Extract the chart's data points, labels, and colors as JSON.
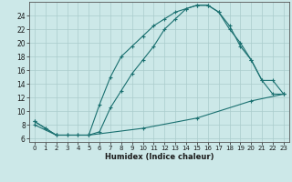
{
  "title": "",
  "xlabel": "Humidex (Indice chaleur)",
  "background_color": "#cce8e8",
  "grid_color": "#aacccc",
  "line_color": "#1a7070",
  "xlim": [
    -0.5,
    23.5
  ],
  "ylim": [
    5.5,
    26.0
  ],
  "xticks": [
    0,
    1,
    2,
    3,
    4,
    5,
    6,
    7,
    8,
    9,
    10,
    11,
    12,
    13,
    14,
    15,
    16,
    17,
    18,
    19,
    20,
    21,
    22,
    23
  ],
  "yticks": [
    6,
    8,
    10,
    12,
    14,
    16,
    18,
    20,
    22,
    24
  ],
  "line1_x": [
    0,
    1,
    2,
    3,
    4,
    5,
    6,
    7,
    8,
    9,
    10,
    11,
    12,
    13,
    14,
    15,
    16,
    17,
    18,
    19,
    20,
    21,
    22,
    23
  ],
  "line1_y": [
    8.5,
    7.5,
    6.5,
    6.5,
    6.5,
    6.5,
    11.0,
    15.0,
    18.0,
    19.5,
    21.0,
    22.5,
    23.5,
    24.5,
    25.0,
    25.5,
    25.5,
    24.5,
    22.0,
    20.0,
    17.5,
    14.5,
    14.5,
    12.5
  ],
  "line2_x": [
    0,
    1,
    2,
    3,
    4,
    5,
    6,
    7,
    8,
    9,
    10,
    11,
    12,
    13,
    14,
    15,
    16,
    17,
    18,
    19,
    20,
    21,
    22,
    23
  ],
  "line2_y": [
    8.5,
    7.5,
    6.5,
    6.5,
    6.5,
    6.5,
    7.0,
    10.5,
    13.0,
    15.5,
    17.5,
    19.5,
    22.0,
    23.5,
    25.0,
    25.5,
    25.5,
    24.5,
    22.5,
    19.5,
    17.5,
    14.5,
    12.5,
    12.5
  ],
  "line3_x": [
    0,
    2,
    5,
    10,
    15,
    20,
    23
  ],
  "line3_y": [
    8.0,
    6.5,
    6.5,
    7.5,
    9.0,
    11.5,
    12.5
  ]
}
